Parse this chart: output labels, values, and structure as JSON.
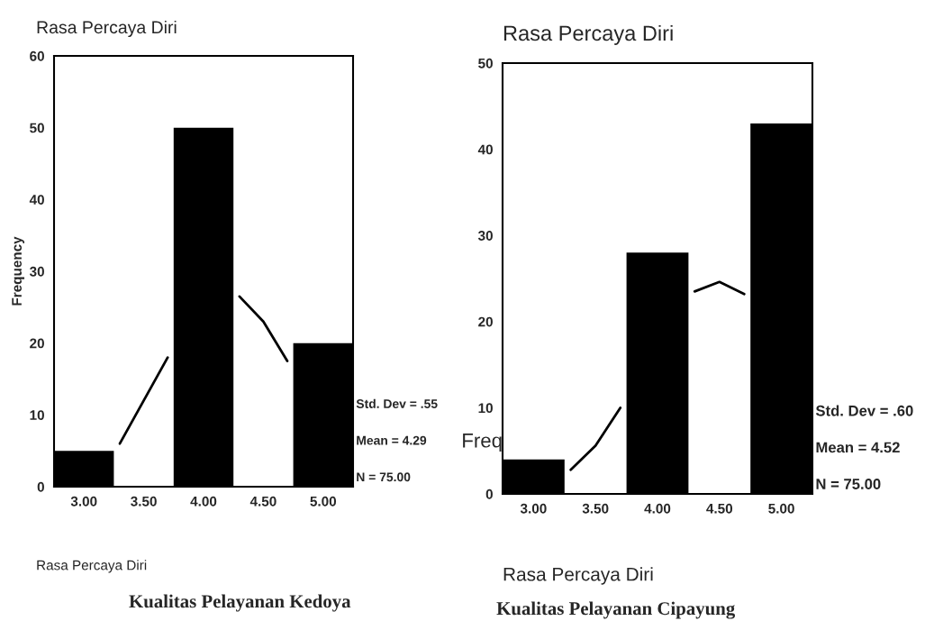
{
  "chart_data": [
    {
      "type": "histogram",
      "title": "Rasa Percaya Diri",
      "xlabel": "Rasa Percaya Diri",
      "ylabel": "Frequency",
      "bins": [
        2.75,
        3.25,
        3.75,
        4.25,
        4.75,
        5.25
      ],
      "values": [
        5,
        0,
        50,
        0,
        20
      ],
      "color": "#000000",
      "xlim": [
        2.75,
        5.25
      ],
      "xticks": [
        {
          "value": 3,
          "label": "3.00"
        },
        {
          "value": 3.5,
          "label": "3.50"
        },
        {
          "value": 4,
          "label": "4.00"
        },
        {
          "value": 4.5,
          "label": "4.50"
        },
        {
          "value": 5,
          "label": "5.00"
        }
      ],
      "ylim": [
        0,
        60
      ],
      "yticks": [
        0,
        10,
        20,
        30,
        40,
        50,
        60
      ],
      "series": [
        {
          "type": "line",
          "color": "#000000",
          "x": [
            3.3,
            3.5,
            3.7,
            4.0,
            4.3,
            4.5,
            4.7
          ],
          "values": [
            6,
            12,
            18,
            null,
            26.5,
            23,
            17.5
          ]
        }
      ],
      "annotations": [
        "Std. Dev = .55",
        "Mean = 4.29",
        "N = 75.00",
        "Kualitas Pelayanan Kedoya"
      ]
    },
    {
      "type": "histogram",
      "title": "Rasa Percaya Diri",
      "xlabel": "Rasa Percaya Diri",
      "ylabel": "Freq",
      "bins": [
        2.75,
        3.25,
        3.75,
        4.25,
        4.75,
        5.25
      ],
      "values": [
        4,
        0,
        28,
        0,
        43
      ],
      "color": "#000000",
      "xlim": [
        2.75,
        5.25
      ],
      "xticks": [
        {
          "value": 3,
          "label": "3.00"
        },
        {
          "value": 3.5,
          "label": "3.50"
        },
        {
          "value": 4,
          "label": "4.00"
        },
        {
          "value": 4.5,
          "label": "4.50"
        },
        {
          "value": 5,
          "label": "5.00"
        }
      ],
      "ylim": [
        0,
        50
      ],
      "yticks": [
        0,
        10,
        20,
        30,
        40,
        50
      ],
      "series": [
        {
          "type": "line",
          "color": "#000000",
          "x": [
            3.3,
            3.5,
            3.7,
            4.0,
            4.3,
            4.5,
            4.7
          ],
          "values": [
            2.8,
            5.6,
            10,
            null,
            23.5,
            24.6,
            23.2
          ]
        }
      ],
      "annotations": [
        "Std. Dev = .60",
        "Mean = 4.52",
        "N = 75.00",
        "Kualitas Pelayanan Cipayung"
      ]
    }
  ]
}
